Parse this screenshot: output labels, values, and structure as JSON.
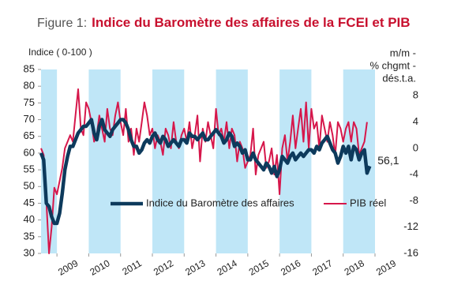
{
  "chart_data": {
    "type": "line",
    "title_prefix": "Figure 1:",
    "title": "Indice du Baromètre des affaires de la FCEI et PIB",
    "ylabel": "Indice ( 0-100 )",
    "y2label": [
      "m/m -",
      "% chgmt -",
      "dés.t.a."
    ],
    "legend": "center",
    "year_shading": true,
    "xlim": [
      2008.5,
      2019
    ],
    "xticks": [
      2009,
      2010,
      2011,
      2012,
      2013,
      2014,
      2015,
      2016,
      2017,
      2018,
      2019
    ],
    "ylim": [
      30,
      85
    ],
    "yticks": [
      30,
      35,
      40,
      45,
      50,
      55,
      60,
      65,
      70,
      75,
      80,
      85
    ],
    "y2lim": [
      -16,
      12
    ],
    "y2ticks": [
      -16,
      -12,
      -8,
      -4,
      0,
      4,
      8
    ],
    "x": [
      2008.5,
      2008.583,
      2008.667,
      2008.75,
      2008.833,
      2008.917,
      2009,
      2009.083,
      2009.167,
      2009.25,
      2009.333,
      2009.417,
      2009.5,
      2009.583,
      2009.667,
      2009.75,
      2009.833,
      2009.917,
      2010,
      2010.083,
      2010.167,
      2010.25,
      2010.333,
      2010.417,
      2010.5,
      2010.583,
      2010.667,
      2010.75,
      2010.833,
      2010.917,
      2011,
      2011.083,
      2011.167,
      2011.25,
      2011.333,
      2011.417,
      2011.5,
      2011.583,
      2011.667,
      2011.75,
      2011.833,
      2011.917,
      2012,
      2012.083,
      2012.167,
      2012.25,
      2012.333,
      2012.417,
      2012.5,
      2012.583,
      2012.667,
      2012.75,
      2012.833,
      2012.917,
      2013,
      2013.083,
      2013.167,
      2013.25,
      2013.333,
      2013.417,
      2013.5,
      2013.583,
      2013.667,
      2013.75,
      2013.833,
      2013.917,
      2014,
      2014.083,
      2014.167,
      2014.25,
      2014.333,
      2014.417,
      2014.5,
      2014.583,
      2014.667,
      2014.75,
      2014.833,
      2014.917,
      2015,
      2015.083,
      2015.167,
      2015.25,
      2015.333,
      2015.417,
      2015.5,
      2015.583,
      2015.667,
      2015.75,
      2015.833,
      2015.917,
      2016,
      2016.083,
      2016.167,
      2016.25,
      2016.333,
      2016.417,
      2016.5,
      2016.583,
      2016.667,
      2016.75,
      2016.833,
      2016.917,
      2017,
      2017.083,
      2017.167,
      2017.25,
      2017.333,
      2017.417,
      2017.5,
      2017.583,
      2017.667,
      2017.75,
      2017.833,
      2017.917,
      2018,
      2018.083,
      2018.167,
      2018.25,
      2018.333,
      2018.417,
      2018.5,
      2018.583,
      2018.667,
      2018.75,
      2018.833
    ],
    "series": [
      {
        "name": "Indice du Baromètre des affaires",
        "color": "#0d3a5c",
        "values": [
          60,
          58,
          45,
          44,
          41,
          39,
          39,
          42,
          48,
          55,
          59,
          62,
          62,
          64,
          66,
          67,
          68,
          68,
          69,
          70,
          66,
          64,
          68,
          70,
          67,
          66,
          65,
          67,
          68,
          69,
          70,
          70,
          69,
          67,
          64,
          62,
          62,
          60,
          61,
          63,
          64,
          63,
          65,
          66,
          64,
          63,
          65,
          64,
          62,
          63,
          64,
          63,
          62,
          64,
          64,
          63,
          66,
          65,
          65,
          64,
          65,
          66,
          64,
          64,
          65,
          66,
          67,
          66,
          65,
          63,
          64,
          66,
          65,
          62,
          63,
          62,
          60,
          61,
          58,
          58,
          60,
          58,
          57,
          56,
          55,
          57,
          56,
          54,
          56,
          53,
          55,
          59,
          58,
          57,
          59,
          60,
          58,
          59,
          60,
          59,
          60,
          61,
          61,
          60,
          62,
          61,
          63,
          64,
          65,
          63,
          61,
          60,
          57,
          59,
          62,
          60,
          62,
          58,
          62,
          61,
          58,
          60,
          61,
          54,
          56.1
        ],
        "value_labels": [
          null,
          null,
          null,
          null,
          null,
          null,
          null,
          null,
          null,
          null,
          null,
          null,
          null,
          null,
          null,
          null,
          null,
          null,
          null,
          null,
          null,
          null,
          null,
          null,
          null,
          null,
          null,
          null,
          null,
          null,
          null,
          null,
          null,
          null,
          null,
          null,
          null,
          null,
          null,
          null,
          null,
          null,
          null,
          null,
          null,
          null,
          null,
          null,
          null,
          null,
          null,
          null,
          null,
          null,
          null,
          null,
          null,
          null,
          null,
          null,
          null,
          null,
          null,
          null,
          null,
          null,
          null,
          null,
          null,
          null,
          null,
          null,
          null,
          null,
          null,
          null,
          null,
          null,
          null,
          null,
          null,
          null,
          null,
          null,
          null,
          null,
          null,
          null,
          null,
          null,
          null,
          null,
          null,
          null,
          null,
          null,
          null,
          null,
          null,
          null,
          null,
          null,
          null,
          null,
          null,
          null,
          null,
          null,
          null,
          null,
          null,
          null,
          null,
          null,
          null,
          null,
          null,
          null,
          null,
          null,
          null,
          null,
          null,
          null,
          "56,1"
        ]
      },
      {
        "name": "PIB réel",
        "color": "#d6174b",
        "axis": "y2",
        "values": [
          0,
          -1,
          -8,
          -16,
          -12,
          -6,
          -7,
          -5,
          -3,
          0,
          1,
          2,
          1,
          5,
          9,
          3,
          2,
          7,
          6,
          4,
          1,
          2,
          5,
          3,
          1,
          6,
          3,
          2,
          5,
          7,
          4,
          2,
          6,
          1,
          3,
          -1,
          3,
          1,
          4,
          7,
          5,
          2,
          3,
          0,
          2,
          1,
          -1,
          3,
          2,
          0,
          4,
          1,
          0,
          2,
          3,
          1,
          4,
          0,
          2,
          5,
          -2,
          3,
          1,
          4,
          2,
          0,
          6,
          2,
          3,
          1,
          4,
          0,
          3,
          2,
          -2,
          1,
          0,
          -3,
          -2,
          -1,
          3,
          -4,
          -1,
          0,
          1,
          -3,
          -2,
          0,
          -4,
          -1,
          -7,
          0,
          2,
          -2,
          1,
          5,
          0,
          3,
          6,
          1,
          7,
          0,
          6,
          3,
          4,
          0,
          5,
          3,
          1,
          4,
          2,
          -1,
          4,
          3,
          1,
          3,
          4,
          1,
          4,
          3,
          -1,
          0,
          1,
          4,
          null
        ]
      }
    ]
  }
}
